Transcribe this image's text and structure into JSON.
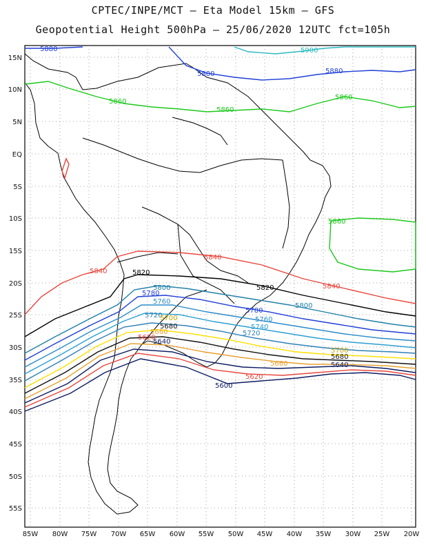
{
  "header": {
    "line1": "CPTEC/INPE/MCT –  Eta Model 15km – GFS",
    "line2": "Geopotential Height 500hPa – 25/06/2020 12UTC fct=105h"
  },
  "axes": {
    "lat_labels": [
      "15N",
      "10N",
      "5N",
      "EQ",
      "5S",
      "10S",
      "15S",
      "20S",
      "25S",
      "30S",
      "35S",
      "40S",
      "45S",
      "50S",
      "55S"
    ],
    "lon_labels": [
      "85W",
      "80W",
      "75W",
      "70W",
      "65W",
      "60W",
      "55W",
      "50W",
      "45W",
      "40W",
      "35W",
      "30W",
      "25W",
      "20W"
    ]
  },
  "contours": [
    {
      "value": "5900",
      "color": "#2ab8c0"
    },
    {
      "value": "5880",
      "color": "#1f3fd6"
    },
    {
      "value": "5860",
      "color": "#19c819"
    },
    {
      "value": "5840",
      "color": "#e8463c"
    },
    {
      "value": "5820",
      "color": "#000000"
    },
    {
      "value": "5800",
      "color": "#1f7fa8"
    },
    {
      "value": "5780",
      "color": "#1f3fd6"
    },
    {
      "value": "5760",
      "color": "#2a8cc8"
    },
    {
      "value": "5740",
      "color": "#2a9fd2"
    },
    {
      "value": "5720",
      "color": "#2e7fb6"
    },
    {
      "value": "5700",
      "color": "#ffe000"
    },
    {
      "value": "5680",
      "color": "#111111"
    },
    {
      "value": "5660",
      "color": "#e8a030"
    },
    {
      "value": "5640",
      "color": "#0c1a60"
    },
    {
      "value": "5620",
      "color": "#e8463c"
    },
    {
      "value": "5600",
      "color": "#0c1a60"
    }
  ]
}
